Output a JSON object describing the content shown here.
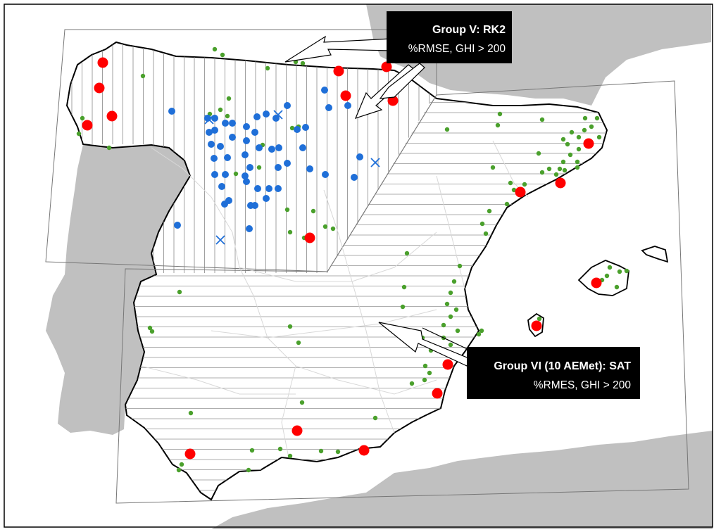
{
  "colors": {
    "sea": "#ffffff",
    "neighbor_land": "#c0c0c0",
    "iberia_land": "#ffffff",
    "coast": "#000000",
    "province_border": "#d8d8d8",
    "hatch": "#888888",
    "red_station": "#ff0000",
    "green_station": "#4aa02c",
    "blue_station": "#1f6fd8",
    "callout_bg": "#000000",
    "callout_text": "#ffffff"
  },
  "map": {
    "region": "Iberian Peninsula and Balearic Islands",
    "neighbor_land": [
      "France",
      "Portugal",
      "Morocco",
      "Algeria"
    ],
    "hatch_zones": [
      {
        "id": "group-v",
        "pattern": "vertical"
      },
      {
        "id": "group-vi",
        "pattern": "horizontal"
      }
    ],
    "station_legend_shapes": [
      "red-circle",
      "green-dot",
      "blue-dot",
      "blue-cross"
    ]
  },
  "callouts": [
    {
      "id": "group-v",
      "line1": "Group V: RK2",
      "line2": "%RMSE, GHI > 200"
    },
    {
      "id": "group-vi",
      "line1": "Group VI (10 AEMet): SAT",
      "line2": "%RMES, GHI > 200"
    }
  ]
}
